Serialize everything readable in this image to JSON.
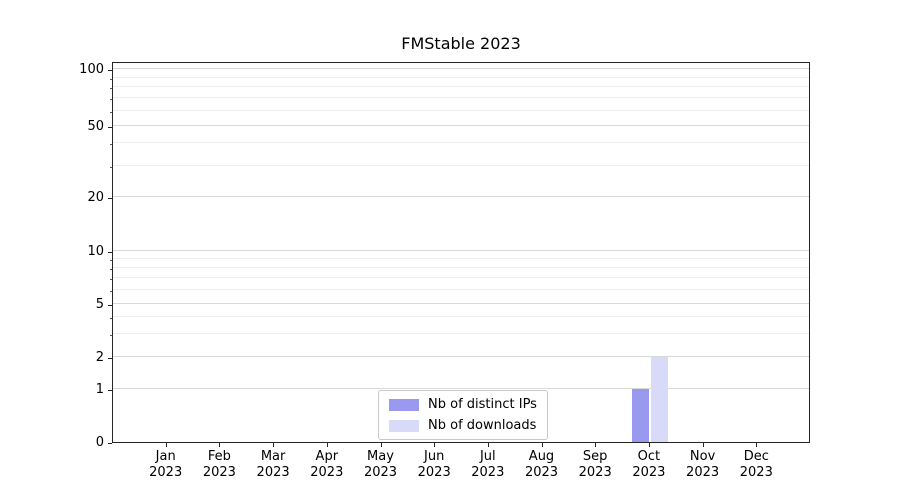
{
  "chart_data": {
    "type": "bar",
    "title": "FMStable 2023",
    "year": "2023",
    "categories": [
      "Jan",
      "Feb",
      "Mar",
      "Apr",
      "May",
      "Jun",
      "Jul",
      "Aug",
      "Sep",
      "Oct",
      "Nov",
      "Dec"
    ],
    "yticks": [
      0,
      1,
      2,
      5,
      10,
      20,
      50,
      100
    ],
    "ylim": [
      0,
      100
    ],
    "yscale": "symlog",
    "grid": true,
    "legend_position": "lower center inside plot",
    "series": [
      {
        "name": "Nb of distinct IPs",
        "color": "#9999f0",
        "values": [
          0,
          0,
          0,
          0,
          0,
          0,
          0,
          0,
          0,
          1,
          0,
          0
        ]
      },
      {
        "name": "Nb of downloads",
        "color": "#d9d9f8",
        "values": [
          0,
          0,
          0,
          0,
          0,
          0,
          0,
          0,
          0,
          2,
          0,
          0
        ]
      }
    ]
  }
}
